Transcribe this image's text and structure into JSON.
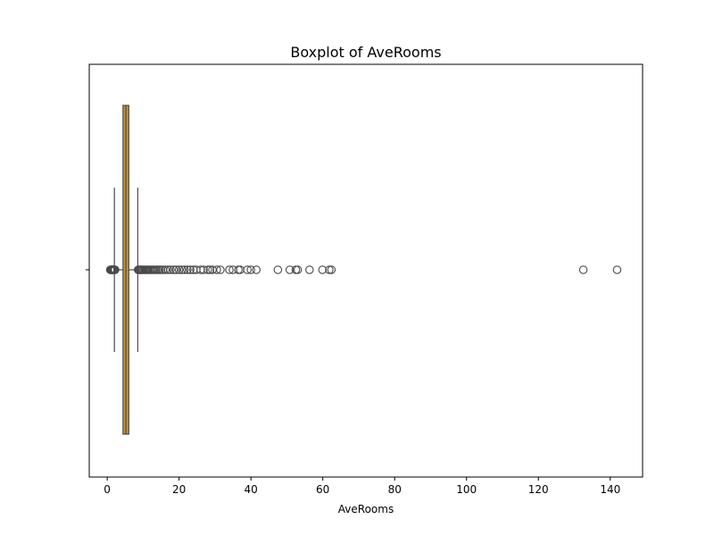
{
  "chart_data": {
    "type": "boxplot",
    "title": "Boxplot of AveRooms",
    "xlabel": "AveRooms",
    "ylabel": "",
    "xlim": [
      -5.0,
      149.0
    ],
    "xticks": [
      0,
      20,
      40,
      60,
      80,
      100,
      120,
      140
    ],
    "grid": false,
    "orientation": "horizontal",
    "colors": {
      "box_fill": "#C9943A",
      "box_edge": "#4a4a4a",
      "outlier_edge": "#4a4a4a"
    },
    "box": {
      "whisker_low": 2.0,
      "q1": 4.4,
      "median": 5.2,
      "q3": 6.0,
      "whisker_high": 8.5
    },
    "outliers": [
      0.85,
      1.0,
      1.1,
      1.2,
      1.3,
      1.4,
      1.5,
      1.6,
      1.7,
      1.8,
      1.9,
      2.0,
      2.1,
      2.2,
      8.6,
      8.8,
      9.0,
      9.2,
      9.5,
      9.8,
      10.1,
      10.4,
      10.7,
      11.0,
      11.3,
      11.6,
      12.0,
      12.4,
      12.8,
      13.2,
      13.6,
      14.0,
      14.5,
      15.0,
      15.5,
      16.2,
      16.9,
      17.6,
      18.5,
      19.2,
      20.0,
      20.8,
      21.5,
      22.3,
      23.1,
      24.0,
      24.8,
      26.0,
      26.8,
      28.0,
      28.6,
      29.3,
      30.5,
      31.5,
      34.0,
      35.0,
      36.5,
      37.0,
      39.0,
      40.0,
      41.5,
      47.5,
      50.8,
      52.5,
      53.0,
      56.3,
      59.9,
      61.8,
      62.4,
      132.5,
      141.9
    ]
  }
}
